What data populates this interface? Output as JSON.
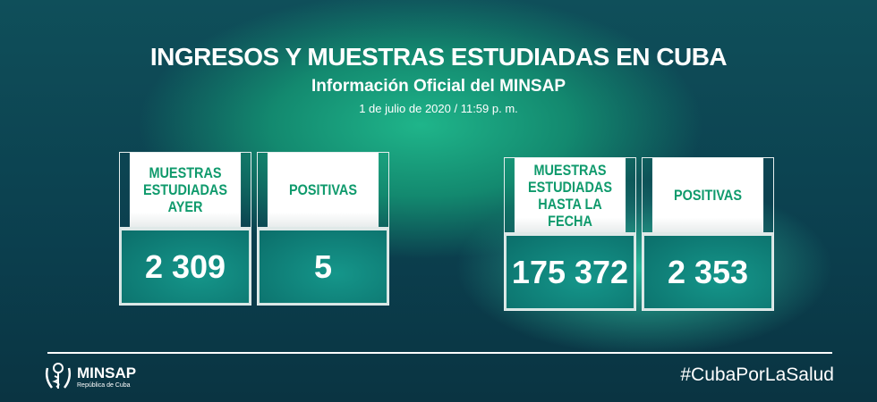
{
  "header": {
    "title": "INGRESOS Y MUESTRAS ESTUDIADAS EN CUBA",
    "subtitle": "Información Oficial del MINSAP",
    "date": "1 de julio de 2020 / 11:59 p. m."
  },
  "cards": [
    {
      "label": "MUESTRAS ESTUDIADAS AYER",
      "value": "2 309"
    },
    {
      "label": "POSITIVAS",
      "value": "5"
    },
    {
      "label": "MUESTRAS ESTUDIADAS HASTA LA FECHA",
      "value": "175 372"
    },
    {
      "label": "POSITIVAS",
      "value": "2 353"
    }
  ],
  "footer": {
    "logo_name": "MINSAP",
    "logo_sub": "República de Cuba",
    "hashtag": "#CubaPorLaSalud"
  },
  "colors": {
    "accent": "#0f9a6c",
    "background": "#0b3f4e"
  }
}
